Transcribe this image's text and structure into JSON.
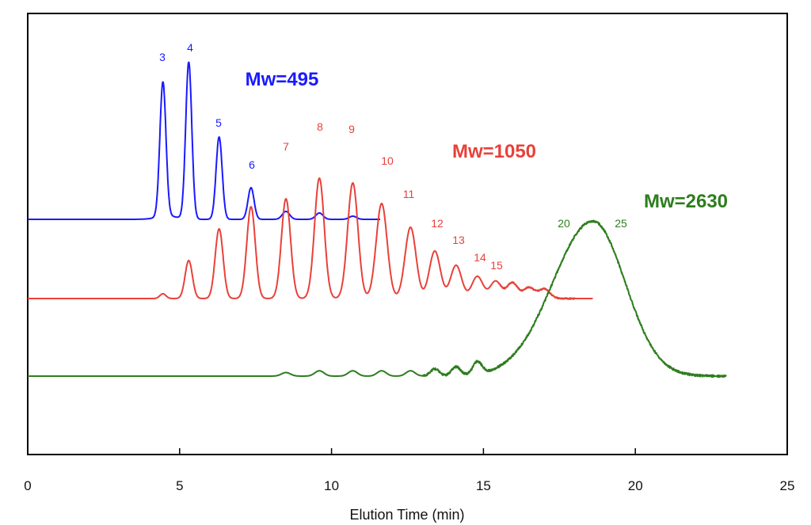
{
  "chart_data": {
    "type": "line",
    "title": "",
    "xlabel": "Elution Time (min)",
    "ylabel": "",
    "xlim": [
      0,
      25
    ],
    "xticks": [
      0,
      5,
      10,
      15,
      20,
      25
    ],
    "xtick_labels": [
      "0",
      "5",
      "10",
      "15",
      "20",
      "25"
    ],
    "yaxis": "none (stacked offset traces)",
    "grid": false,
    "series": [
      {
        "name": "Mw=495",
        "color": "#1a1aff",
        "x_range": [
          0,
          11.6
        ],
        "peaks": [
          {
            "label": "3",
            "x": 4.45,
            "height": 0.85,
            "width": 0.1
          },
          {
            "label": "4",
            "x": 5.3,
            "height": 0.99,
            "width": 0.1
          },
          {
            "label": "5",
            "x": 6.3,
            "height": 0.52,
            "width": 0.1
          },
          {
            "label": "6",
            "x": 7.35,
            "height": 0.2,
            "width": 0.1
          },
          {
            "label": "",
            "x": 8.5,
            "height": 0.05,
            "width": 0.12
          },
          {
            "label": "",
            "x": 9.6,
            "height": 0.04,
            "width": 0.12
          },
          {
            "label": "",
            "x": 10.7,
            "height": 0.02,
            "width": 0.12
          }
        ],
        "peak_labels": [
          "3",
          "4",
          "5",
          "6"
        ]
      },
      {
        "name": "Mw=1050",
        "color": "#e8413a",
        "x_range": [
          0,
          18.6
        ],
        "peaks": [
          {
            "label": "",
            "x": 4.45,
            "height": 0.03,
            "width": 0.1
          },
          {
            "label": "",
            "x": 5.3,
            "height": 0.24,
            "width": 0.12
          },
          {
            "label": "",
            "x": 6.3,
            "height": 0.44,
            "width": 0.13
          },
          {
            "label": "",
            "x": 7.35,
            "height": 0.58,
            "width": 0.14
          },
          {
            "label": "7",
            "x": 8.5,
            "height": 0.63,
            "width": 0.15
          },
          {
            "label": "8",
            "x": 9.6,
            "height": 0.76,
            "width": 0.16
          },
          {
            "label": "9",
            "x": 10.7,
            "height": 0.73,
            "width": 0.17
          },
          {
            "label": "10",
            "x": 11.65,
            "height": 0.6,
            "width": 0.18
          },
          {
            "label": "11",
            "x": 12.6,
            "height": 0.45,
            "width": 0.18
          },
          {
            "label": "12",
            "x": 13.4,
            "height": 0.3,
            "width": 0.18
          },
          {
            "label": "13",
            "x": 14.1,
            "height": 0.21,
            "width": 0.18
          },
          {
            "label": "14",
            "x": 14.8,
            "height": 0.14,
            "width": 0.18
          },
          {
            "label": "15",
            "x": 15.4,
            "height": 0.11,
            "width": 0.18
          },
          {
            "label": "",
            "x": 15.95,
            "height": 0.1,
            "width": 0.18
          },
          {
            "label": "",
            "x": 16.5,
            "height": 0.07,
            "width": 0.18
          },
          {
            "label": "",
            "x": 17.0,
            "height": 0.06,
            "width": 0.18
          }
        ],
        "peak_labels": [
          "7",
          "8",
          "9",
          "10",
          "11",
          "12",
          "13",
          "14",
          "15"
        ]
      },
      {
        "name": "Mw=2630",
        "color": "#2e7d1f",
        "x_range": [
          0,
          23.0
        ],
        "envelope": {
          "center": 18.6,
          "sigma": 1.25,
          "height": 0.87
        },
        "small_bumps": [
          {
            "x": 8.5,
            "height": 0.02
          },
          {
            "x": 9.6,
            "height": 0.03
          },
          {
            "x": 10.7,
            "height": 0.03
          },
          {
            "x": 11.65,
            "height": 0.03
          },
          {
            "x": 12.6,
            "height": 0.03
          },
          {
            "x": 13.4,
            "height": 0.04
          },
          {
            "x": 14.1,
            "height": 0.05
          },
          {
            "x": 14.8,
            "height": 0.07
          }
        ],
        "peak_labels": [
          "20",
          "25"
        ]
      }
    ]
  }
}
